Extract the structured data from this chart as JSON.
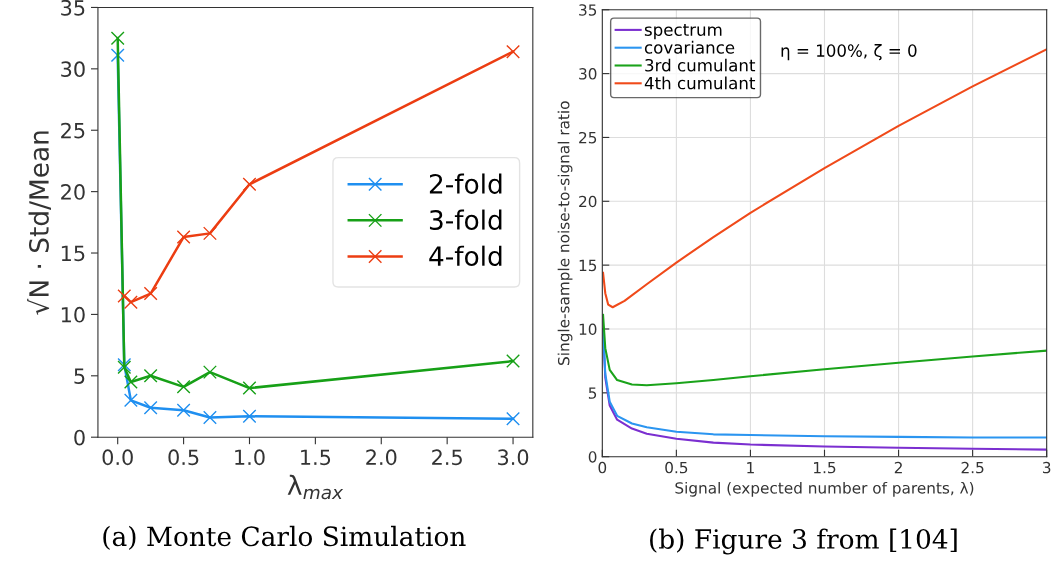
{
  "chart_data": [
    {
      "type": "line",
      "xlabel": "λ$_{max}$",
      "ylabel": "√N · Std/Mean",
      "annotations": [
        "(a) Monte Carlo Simulation"
      ],
      "x": [
        0,
        0.05,
        0.1,
        0.25,
        0.5,
        0.7,
        1.0,
        3.0
      ],
      "series": [
        {
          "name": "2-fold",
          "color": "#1f8ff0",
          "values": [
            31.1,
            5.9,
            3.0,
            2.4,
            2.2,
            1.6,
            1.7,
            1.5
          ]
        },
        {
          "name": "3-fold",
          "color": "#17a017",
          "values": [
            32.5,
            5.7,
            4.5,
            5.0,
            4.1,
            5.3,
            4.0,
            6.2
          ]
        },
        {
          "name": "4-fold",
          "color": "#ec3d12",
          "values": [
            null,
            11.5,
            11.0,
            11.7,
            16.3,
            16.6,
            20.6,
            31.4
          ]
        }
      ],
      "xlim": [
        -0.15,
        3.15
      ],
      "ylim": [
        0,
        35
      ],
      "xticks": [
        {
          "value": 0,
          "label": "0.0"
        },
        0.5,
        {
          "value": 1,
          "label": "1.0"
        },
        1.5,
        {
          "value": 2,
          "label": "2.0"
        },
        2.5,
        {
          "value": 3,
          "label": "3.0"
        }
      ],
      "yticks": [
        0,
        5,
        10,
        15,
        20,
        25,
        30,
        35
      ],
      "grid": false,
      "legend": "right",
      "marker": "cross",
      "line_style": "solid"
    },
    {
      "type": "line",
      "xlabel": "Signal (expected number of parents, λ)",
      "ylabel": "Single-sample noise-to-signal ratio",
      "annotations": [
        "η = 100%, ζ = 0",
        "(b) Figure 3 from [104]"
      ],
      "series": [
        {
          "name": "spectrum",
          "color": "#7b2fd0",
          "x": [
            0.005,
            0.02,
            0.05,
            0.1,
            0.2,
            0.3,
            0.5,
            0.75,
            1,
            1.5,
            2,
            2.5,
            3
          ],
          "values": [
            10,
            6.2,
            4.0,
            2.9,
            2.2,
            1.8,
            1.4,
            1.1,
            0.95,
            0.8,
            0.7,
            0.62,
            0.55
          ]
        },
        {
          "name": "covariance",
          "color": "#2b95f0",
          "x": [
            0.005,
            0.02,
            0.05,
            0.1,
            0.2,
            0.3,
            0.5,
            0.75,
            1,
            1.5,
            2,
            2.5,
            3
          ],
          "values": [
            10,
            6.5,
            4.3,
            3.2,
            2.6,
            2.3,
            1.95,
            1.75,
            1.7,
            1.6,
            1.55,
            1.5,
            1.5
          ]
        },
        {
          "name": "3rd cumulant",
          "color": "#1aa31a",
          "x": [
            0.005,
            0.02,
            0.05,
            0.1,
            0.2,
            0.3,
            0.5,
            0.75,
            1,
            1.5,
            2,
            2.5,
            3
          ],
          "values": [
            11.1,
            8.5,
            6.8,
            6.0,
            5.65,
            5.6,
            5.75,
            6.0,
            6.3,
            6.85,
            7.35,
            7.85,
            8.3
          ]
        },
        {
          "name": "4th cumulant",
          "color": "#f04a1a",
          "x": [
            0.005,
            0.02,
            0.04,
            0.07,
            0.15,
            0.3,
            0.5,
            0.75,
            1,
            1.5,
            2,
            2.5,
            3
          ],
          "values": [
            14.4,
            12.8,
            11.9,
            11.7,
            12.2,
            13.5,
            15.2,
            17.2,
            19.1,
            22.6,
            25.9,
            29,
            31.9
          ]
        }
      ],
      "xlim": [
        0,
        3
      ],
      "ylim": [
        0,
        35
      ],
      "xticks": [
        0,
        0.5,
        1,
        1.5,
        2,
        2.5,
        3
      ],
      "yticks": [
        0,
        5,
        10,
        15,
        20,
        25,
        30,
        35
      ],
      "grid": true,
      "legend": "top left",
      "line_style": "solid"
    }
  ]
}
